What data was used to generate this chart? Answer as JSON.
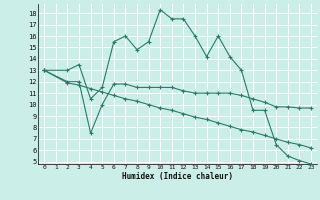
{
  "xlabel": "Humidex (Indice chaleur)",
  "bg_color": "#cceee8",
  "grid_color": "#ffffff",
  "line_color": "#2a7a6a",
  "xlim": [
    -0.5,
    23.5
  ],
  "ylim": [
    4.8,
    18.8
  ],
  "yticks": [
    5,
    6,
    7,
    8,
    9,
    10,
    11,
    12,
    13,
    14,
    15,
    16,
    17,
    18
  ],
  "xticks": [
    0,
    1,
    2,
    3,
    4,
    5,
    6,
    7,
    8,
    9,
    10,
    11,
    12,
    13,
    14,
    15,
    16,
    17,
    18,
    19,
    20,
    21,
    22,
    23
  ],
  "series": [
    {
      "x": [
        0,
        2,
        3,
        4,
        5,
        6,
        7,
        8,
        9,
        10,
        11,
        12,
        13,
        14,
        15,
        16,
        17,
        18,
        19,
        20,
        21,
        22,
        23
      ],
      "y": [
        13,
        13,
        13.5,
        10.5,
        11.5,
        15.5,
        16,
        14.8,
        15.5,
        18.3,
        17.5,
        17.5,
        16,
        14.2,
        16,
        14.2,
        13,
        9.5,
        9.5,
        6.5,
        5.5,
        5.1,
        4.8
      ]
    },
    {
      "x": [
        0,
        2,
        3,
        4,
        5,
        6,
        7,
        8,
        9,
        10,
        11,
        12,
        13,
        14,
        15,
        16,
        17,
        18,
        19,
        20,
        21,
        22,
        23
      ],
      "y": [
        13,
        12,
        12,
        7.5,
        10,
        11.8,
        11.8,
        11.5,
        11.5,
        11.5,
        11.5,
        11.2,
        11.0,
        11.0,
        11.0,
        11.0,
        10.8,
        10.5,
        10.2,
        9.8,
        9.8,
        9.7,
        9.7
      ]
    },
    {
      "x": [
        0,
        2,
        3,
        4,
        5,
        6,
        7,
        8,
        9,
        10,
        11,
        12,
        13,
        14,
        15,
        16,
        17,
        18,
        19,
        20,
        21,
        22,
        23
      ],
      "y": [
        13,
        11.9,
        11.7,
        11.4,
        11.1,
        10.8,
        10.5,
        10.3,
        10.0,
        9.7,
        9.5,
        9.2,
        8.9,
        8.7,
        8.4,
        8.1,
        7.8,
        7.6,
        7.3,
        7.0,
        6.7,
        6.5,
        6.2
      ]
    }
  ]
}
